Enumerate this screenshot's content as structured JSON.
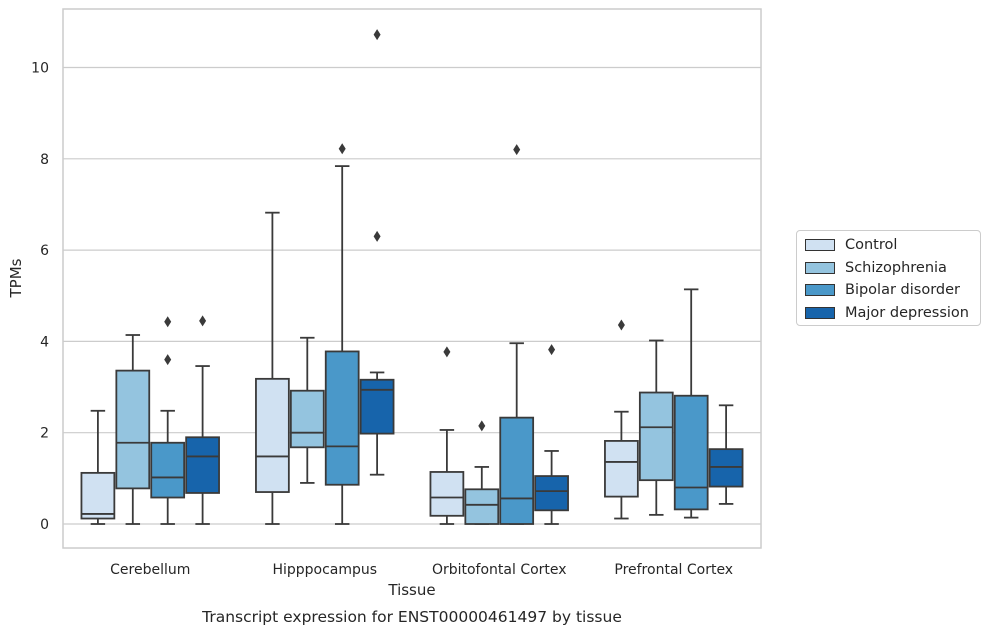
{
  "chart_data": {
    "type": "box",
    "caption": "Transcript expression for ENST00000461497 by tissue",
    "xlabel": "Tissue",
    "ylabel": "TPMs",
    "ylim": [
      -0.5,
      11.3
    ],
    "yticks": [
      0,
      2,
      4,
      6,
      8,
      10
    ],
    "grid": "horizontal",
    "legend_position": "right",
    "categories": [
      "Cerebellum",
      "Hipppocampus",
      "Orbitofontal Cortex",
      "Prefrontal Cortex"
    ],
    "series": [
      {
        "name": "Control",
        "color": "#d0e1f2",
        "boxes": [
          {
            "whislo": 0.0,
            "q1": 0.12,
            "med": 0.22,
            "q3": 1.12,
            "whishi": 2.48,
            "fliers": []
          },
          {
            "whislo": 0.0,
            "q1": 0.7,
            "med": 1.48,
            "q3": 3.18,
            "whishi": 6.82,
            "fliers": []
          },
          {
            "whislo": 0.0,
            "q1": 0.18,
            "med": 0.58,
            "q3": 1.14,
            "whishi": 2.06,
            "fliers": [
              3.77
            ]
          },
          {
            "whislo": 0.12,
            "q1": 0.6,
            "med": 1.36,
            "q3": 1.82,
            "whishi": 2.46,
            "fliers": [
              4.36
            ]
          }
        ]
      },
      {
        "name": "Schizophrenia",
        "color": "#94c4df",
        "boxes": [
          {
            "whislo": 0.0,
            "q1": 0.78,
            "med": 1.78,
            "q3": 3.36,
            "whishi": 4.14,
            "fliers": []
          },
          {
            "whislo": 0.9,
            "q1": 1.68,
            "med": 2.0,
            "q3": 2.92,
            "whishi": 4.08,
            "fliers": []
          },
          {
            "whislo": 0.0,
            "q1": 0.0,
            "med": 0.42,
            "q3": 0.76,
            "whishi": 1.25,
            "fliers": [
              2.15
            ]
          },
          {
            "whislo": 0.2,
            "q1": 0.96,
            "med": 2.12,
            "q3": 2.88,
            "whishi": 4.02,
            "fliers": []
          }
        ]
      },
      {
        "name": "Bipolar disorder",
        "color": "#4a98c9",
        "boxes": [
          {
            "whislo": 0.0,
            "q1": 0.58,
            "med": 1.02,
            "q3": 1.78,
            "whishi": 2.48,
            "fliers": [
              3.6,
              4.43
            ]
          },
          {
            "whislo": 0.0,
            "q1": 0.86,
            "med": 1.7,
            "q3": 3.78,
            "whishi": 7.84,
            "fliers": [
              8.22
            ]
          },
          {
            "whislo": 0.0,
            "q1": 0.0,
            "med": 0.56,
            "q3": 2.33,
            "whishi": 3.96,
            "fliers": [
              8.2
            ]
          },
          {
            "whislo": 0.14,
            "q1": 0.32,
            "med": 0.8,
            "q3": 2.81,
            "whishi": 5.14,
            "fliers": []
          }
        ]
      },
      {
        "name": "Major depression",
        "color": "#1764ab",
        "boxes": [
          {
            "whislo": 0.0,
            "q1": 0.68,
            "med": 1.48,
            "q3": 1.9,
            "whishi": 3.46,
            "fliers": [
              4.45
            ]
          },
          {
            "whislo": 1.08,
            "q1": 1.98,
            "med": 2.94,
            "q3": 3.16,
            "whishi": 3.32,
            "fliers": [
              6.3,
              10.72
            ]
          },
          {
            "whislo": 0.0,
            "q1": 0.3,
            "med": 0.72,
            "q3": 1.05,
            "whishi": 1.6,
            "fliers": [
              3.82
            ]
          },
          {
            "whislo": 0.44,
            "q1": 0.82,
            "med": 1.25,
            "q3": 1.64,
            "whishi": 2.6,
            "fliers": []
          }
        ]
      }
    ]
  }
}
